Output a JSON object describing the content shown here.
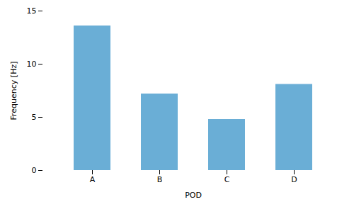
{
  "chart_data": {
    "type": "bar",
    "categories": [
      "A",
      "B",
      "C",
      "D"
    ],
    "values": [
      13.6,
      7.2,
      4.8,
      8.1
    ],
    "color": "#6aaed6",
    "xlabel": "POD",
    "ylabel": "Frequency [Hz]",
    "ylim": [
      0,
      15
    ],
    "yticks": [
      0,
      5,
      10,
      15
    ],
    "grid": false
  }
}
